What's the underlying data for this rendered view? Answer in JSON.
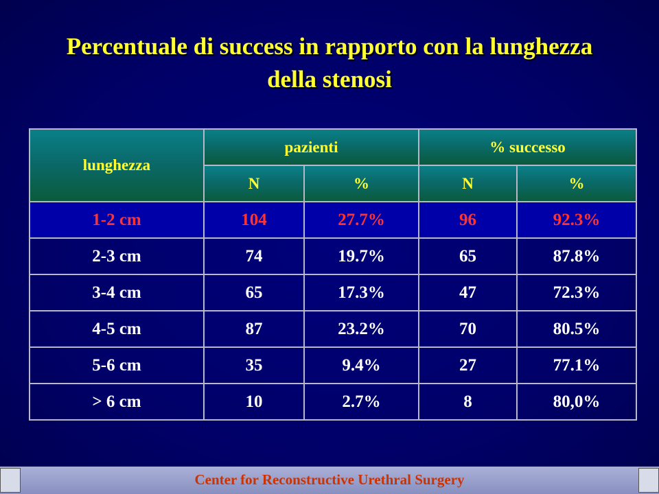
{
  "title": [
    "Percentuale di success in rapporto con la lunghezza",
    "della stenosi"
  ],
  "table": {
    "header": {
      "first": "lunghezza",
      "groups": [
        "pazienti",
        "% successo"
      ],
      "sub": [
        "N",
        "%",
        "N",
        "%"
      ]
    },
    "rows": [
      [
        "1-2 cm",
        "104",
        "27.7%",
        "96",
        "92.3%"
      ],
      [
        "2-3 cm",
        "74",
        "19.7%",
        "65",
        "87.8%"
      ],
      [
        "3-4 cm",
        "65",
        "17.3%",
        "47",
        "72.3%"
      ],
      [
        "4-5 cm",
        "87",
        "23.2%",
        "70",
        "80.5%"
      ],
      [
        "5-6 cm",
        "35",
        "9.4%",
        "27",
        "77.1%"
      ],
      [
        "> 6 cm",
        "10",
        "2.7%",
        "8",
        "80,0%"
      ]
    ]
  },
  "footer": "Center for Reconstructive Urethral Surgery"
}
